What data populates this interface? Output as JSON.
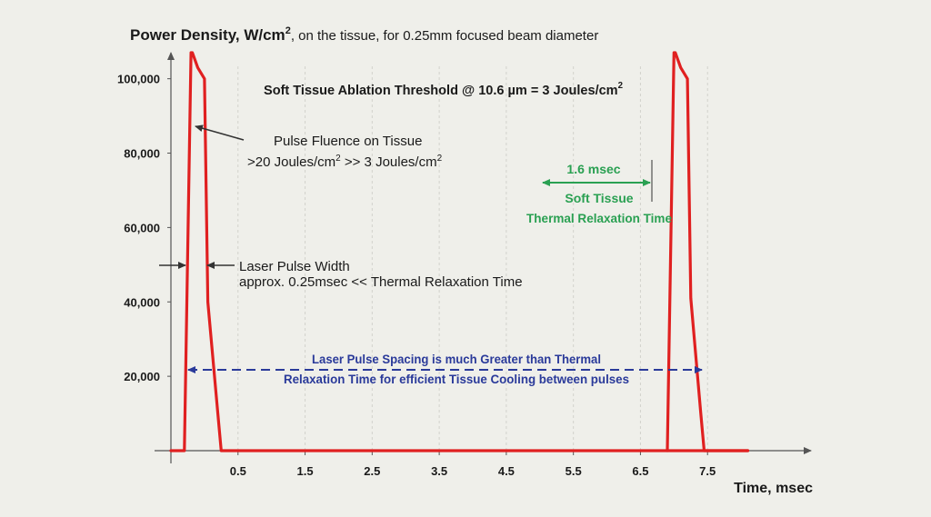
{
  "chart_data": {
    "type": "line",
    "title_prefix": "Power Density, W/cm",
    "title_sup": "2",
    "title_suffix": ", on the tissue, for 0.25mm focused beam diameter",
    "xlabel": "Time, msec",
    "ylabel": "",
    "xlim": [
      -0.5,
      8.5
    ],
    "ylim": [
      0,
      107000
    ],
    "x_ticks": [
      0.5,
      1.5,
      2.5,
      3.5,
      4.5,
      5.5,
      6.5,
      7.5
    ],
    "x_tick_labels": [
      "0.5",
      "1.5",
      "2.5",
      "3.5",
      "4.5",
      "5.5",
      "6.5",
      "7.5"
    ],
    "y_ticks": [
      20000,
      40000,
      60000,
      80000,
      100000
    ],
    "y_tick_labels": [
      "20,000",
      "40,000",
      "60,000",
      "80,000",
      "100,000"
    ],
    "series": [
      {
        "color": "#e02020",
        "x": [
          -0.5,
          -0.3,
          -0.2,
          -0.18,
          -0.1,
          0.0,
          0.05,
          0.2,
          0.25,
          0.5,
          8.1
        ],
        "y": [
          0,
          0,
          107000,
          107000,
          103000,
          100000,
          40000,
          10000,
          0,
          0,
          0
        ]
      },
      {
        "color": "#e02020",
        "x": [
          6.9,
          7.0,
          7.02,
          7.1,
          7.2,
          7.25,
          7.4,
          7.45,
          8.1
        ],
        "y": [
          0,
          107000,
          107000,
          103000,
          100000,
          41000,
          10000,
          0,
          0
        ]
      }
    ],
    "annotations": {
      "threshold_prefix": "Soft Tissue Ablation Threshold @ 10.6 µm = 3 Joules/cm",
      "threshold_sup": "2",
      "fluence_line1": "Pulse Fluence on Tissue",
      "fluence_line2_a": ">20 Joules/cm",
      "fluence_line2_sup1": "2",
      "fluence_line2_b": " >> 3 Joules/cm",
      "fluence_line2_sup2": "2",
      "pulse_width_line1": "Laser Pulse Width",
      "pulse_width_line2": "approx. 0.25msec << Thermal Relaxation Time",
      "relax_value": "1.6 msec",
      "relax_line1": "Soft Tissue",
      "relax_line2": "Thermal Relaxation Time",
      "spacing_line1": "Laser Pulse Spacing is much Greater than Thermal",
      "spacing_line2": "Relaxation Time for efficient Tissue Cooling between pulses"
    },
    "grid": true,
    "colors": {
      "pulse": "#e02020",
      "relaxation": "#2aa052",
      "spacing": "#2a3a9a",
      "axis": "#555555",
      "grid": "#d2d2cc"
    }
  }
}
